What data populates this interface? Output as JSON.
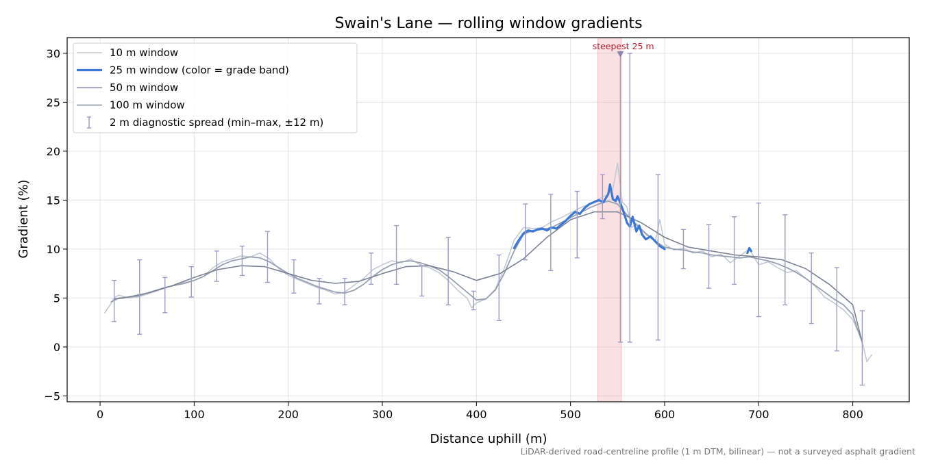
{
  "chart_data": {
    "type": "line",
    "title": "Swain's Lane — rolling window gradients",
    "xlabel": "Distance uphill (m)",
    "ylabel": "Gradient (%)",
    "xlim": [
      -35,
      860
    ],
    "ylim": [
      -5.6,
      31.6
    ],
    "xticks": [
      0,
      100,
      200,
      300,
      400,
      500,
      600,
      700,
      800
    ],
    "yticks": [
      -5,
      0,
      5,
      10,
      15,
      20,
      25,
      30
    ],
    "xtick_labels": [
      "0",
      "100",
      "200",
      "300",
      "400",
      "500",
      "600",
      "700",
      "800"
    ],
    "ytick_labels": [
      "−5",
      "0",
      "5",
      "10",
      "15",
      "20",
      "25",
      "30"
    ],
    "grid": true,
    "legend_position": "top-left",
    "legend": [
      {
        "key": "w10",
        "label": "10 m window",
        "kind": "line",
        "color": "#c3c9d3",
        "width": 1.6
      },
      {
        "key": "w25",
        "label": "25 m window (color = grade band)",
        "kind": "line",
        "color": "#3b78d6",
        "width": 3.2
      },
      {
        "key": "w50",
        "label": "50 m window",
        "kind": "line",
        "color": "#97a1b0",
        "width": 1.8
      },
      {
        "key": "w100",
        "label": "100 m window",
        "kind": "line",
        "color": "#7a8292",
        "width": 1.6
      },
      {
        "key": "diag",
        "label": "2 m diagnostic spread (min–max, ±12 m)",
        "kind": "errorbar",
        "color": "#9b9bc4",
        "width": 1.4
      }
    ],
    "series": [
      {
        "key": "w10",
        "color": "#c3c9d3",
        "x": [
          5,
          10,
          15,
          20,
          30,
          40,
          50,
          60,
          70,
          80,
          90,
          100,
          110,
          120,
          130,
          140,
          150,
          160,
          170,
          180,
          190,
          200,
          210,
          220,
          230,
          240,
          250,
          260,
          270,
          280,
          290,
          300,
          310,
          320,
          330,
          340,
          350,
          360,
          370,
          380,
          390,
          395,
          400,
          410,
          420,
          430,
          440,
          450,
          460,
          470,
          480,
          490,
          500,
          510,
          520,
          530,
          540,
          545,
          550,
          555,
          560,
          565,
          570,
          575,
          580,
          590,
          595,
          600,
          610,
          620,
          630,
          640,
          650,
          660,
          670,
          680,
          690,
          700,
          710,
          720,
          730,
          740,
          750,
          760,
          770,
          780,
          790,
          800,
          805,
          810,
          815,
          820
        ],
        "y": [
          3.5,
          4.2,
          5.0,
          5.3,
          5.0,
          5.1,
          5.4,
          5.7,
          6.1,
          6.3,
          6.6,
          6.8,
          7.2,
          8.1,
          8.7,
          9.0,
          9.3,
          9.2,
          9.6,
          9.0,
          8.0,
          7.3,
          6.9,
          6.5,
          6.1,
          5.8,
          5.4,
          5.6,
          6.3,
          7.0,
          7.9,
          8.4,
          8.8,
          8.6,
          9.0,
          8.4,
          8.1,
          7.6,
          6.8,
          5.8,
          5.0,
          4.0,
          4.5,
          4.9,
          5.9,
          8.1,
          10.9,
          12.2,
          12.1,
          12.2,
          12.8,
          13.2,
          13.7,
          14.2,
          14.6,
          15.1,
          15.6,
          16.1,
          18.8,
          14.8,
          14.3,
          12.2,
          12.6,
          12.0,
          11.5,
          10.8,
          13.0,
          10.5,
          9.9,
          10.1,
          9.6,
          9.8,
          9.2,
          9.5,
          8.6,
          9.3,
          10.0,
          8.4,
          8.7,
          8.1,
          7.6,
          7.8,
          7.0,
          6.2,
          5.1,
          4.5,
          3.8,
          2.8,
          1.7,
          0.6,
          -1.5,
          -0.8
        ]
      },
      {
        "key": "w50",
        "color": "#97a1b0",
        "x": [
          12,
          20,
          30,
          40,
          50,
          60,
          70,
          80,
          90,
          100,
          110,
          120,
          130,
          140,
          150,
          160,
          170,
          180,
          190,
          200,
          210,
          220,
          230,
          240,
          250,
          260,
          270,
          280,
          290,
          300,
          310,
          320,
          330,
          340,
          350,
          360,
          370,
          380,
          390,
          400,
          410,
          420,
          430,
          440,
          450,
          460,
          470,
          480,
          490,
          500,
          510,
          520,
          530,
          540,
          550,
          560,
          570,
          580,
          590,
          600,
          610,
          620,
          630,
          640,
          650,
          660,
          670,
          680,
          690,
          700,
          710,
          720,
          730,
          740,
          750,
          760,
          770,
          780,
          790,
          800,
          805,
          810
        ],
        "y": [
          4.6,
          5.0,
          5.1,
          5.2,
          5.5,
          5.8,
          6.1,
          6.3,
          6.5,
          6.8,
          7.2,
          7.8,
          8.4,
          8.8,
          9.0,
          9.2,
          9.1,
          8.7,
          8.1,
          7.5,
          7.0,
          6.6,
          6.2,
          5.9,
          5.6,
          5.5,
          5.8,
          6.4,
          7.2,
          7.9,
          8.4,
          8.7,
          8.8,
          8.6,
          8.3,
          7.9,
          7.2,
          6.4,
          5.6,
          4.8,
          4.9,
          5.8,
          7.6,
          9.8,
          11.5,
          11.9,
          12.0,
          12.2,
          12.7,
          13.2,
          13.7,
          14.2,
          14.6,
          14.9,
          14.6,
          13.5,
          12.5,
          11.6,
          10.8,
          10.2,
          10.0,
          9.9,
          9.7,
          9.6,
          9.4,
          9.3,
          9.2,
          9.1,
          9.2,
          9.0,
          8.8,
          8.5,
          8.1,
          7.6,
          7.0,
          6.3,
          5.6,
          4.9,
          4.3,
          3.3,
          1.8,
          0.5
        ]
      },
      {
        "key": "w100",
        "color": "#7a8292",
        "x": [
          15,
          25,
          50,
          75,
          100,
          125,
          150,
          175,
          200,
          225,
          250,
          275,
          300,
          325,
          350,
          375,
          400,
          425,
          450,
          475,
          500,
          525,
          550,
          575,
          600,
          625,
          650,
          675,
          700,
          725,
          750,
          775,
          800,
          810
        ],
        "y": [
          4.9,
          5.0,
          5.5,
          6.2,
          7.1,
          7.9,
          8.3,
          8.2,
          7.5,
          6.8,
          6.5,
          6.7,
          7.5,
          8.2,
          8.3,
          7.7,
          6.8,
          7.5,
          9.0,
          11.2,
          13.0,
          13.8,
          13.8,
          12.7,
          11.2,
          10.2,
          9.8,
          9.4,
          9.2,
          8.9,
          8.0,
          6.4,
          4.3,
          0.5
        ]
      },
      {
        "key": "w25",
        "color": "#3b78d6",
        "x": [
          440,
          445,
          450,
          455,
          460,
          465,
          470,
          475,
          480,
          485,
          490,
          495,
          500,
          505,
          510,
          515,
          520,
          525,
          530,
          535,
          540,
          542,
          545,
          548,
          550,
          553,
          556,
          560,
          563,
          566,
          570,
          573,
          576,
          580,
          585,
          590,
          595,
          600
        ],
        "y": [
          10.1,
          10.9,
          11.6,
          11.9,
          11.8,
          12.0,
          12.1,
          11.9,
          12.2,
          12.1,
          12.5,
          12.9,
          13.4,
          13.8,
          13.6,
          14.2,
          14.6,
          14.8,
          15.0,
          14.8,
          15.6,
          16.6,
          15.1,
          14.9,
          15.4,
          14.7,
          13.9,
          12.7,
          12.3,
          13.3,
          11.8,
          12.4,
          11.5,
          11.0,
          11.3,
          10.8,
          10.3,
          10.0
        ]
      },
      {
        "key": "w25b",
        "color": "#3b78d6",
        "x": [
          688,
          690,
          692
        ],
        "y": [
          9.6,
          10.1,
          9.8
        ]
      }
    ],
    "error_bars": {
      "color": "#9b9bc4",
      "x": [
        15,
        42,
        69,
        97,
        124,
        151,
        178,
        206,
        233,
        260,
        288,
        315,
        342,
        370,
        397,
        424,
        452,
        479,
        507,
        534,
        553,
        563,
        593,
        620,
        647,
        674,
        700,
        728,
        756,
        783,
        810
      ],
      "ymin": [
        2.6,
        1.3,
        3.5,
        5.1,
        6.7,
        7.3,
        6.6,
        5.5,
        4.4,
        4.3,
        6.4,
        6.4,
        5.2,
        4.3,
        3.8,
        2.7,
        8.9,
        7.8,
        9.1,
        13.1,
        0.5,
        0.5,
        0.7,
        8.0,
        6.0,
        6.4,
        3.1,
        4.3,
        2.4,
        -0.4,
        -3.9
      ],
      "ymax": [
        6.8,
        8.9,
        7.1,
        8.2,
        9.8,
        10.3,
        11.8,
        8.9,
        7.0,
        7.0,
        9.6,
        12.4,
        8.3,
        11.2,
        5.7,
        9.4,
        14.6,
        15.6,
        15.9,
        17.6,
        30.0,
        30.0,
        17.6,
        12.0,
        12.5,
        13.3,
        14.7,
        13.5,
        9.6,
        8.1,
        3.7
      ]
    },
    "highlight": {
      "x_start": 529,
      "x_end": 554,
      "color": "#e8a0a8",
      "label": "steepest 25 m",
      "label_color": "#b02030",
      "marker_x": 553,
      "marker_y": 30.0
    },
    "footnote": "LiDAR-derived road-centreline profile (1 m DTM, bilinear) — not a surveyed asphalt gradient"
  }
}
